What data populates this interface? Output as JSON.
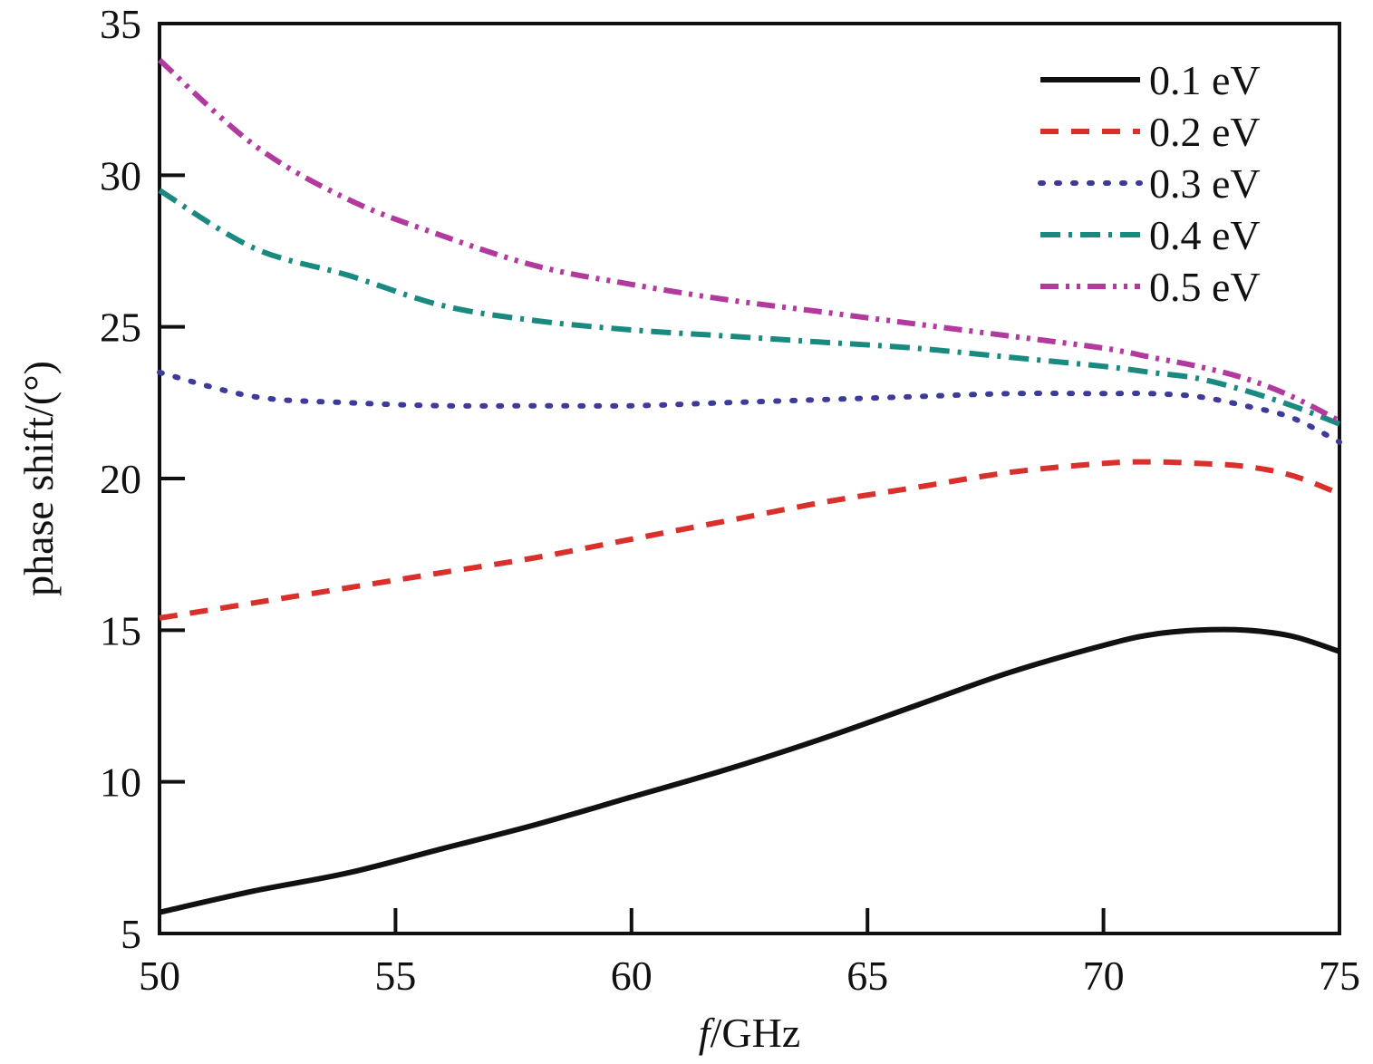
{
  "chart_data": {
    "type": "line",
    "title": "",
    "xlabel_italic": "f",
    "xlabel_rest": "/GHz",
    "ylabel": "phase shift/(°)",
    "xlim": [
      50,
      75
    ],
    "ylim": [
      5,
      35
    ],
    "xticks": [
      "50",
      "55",
      "60",
      "65",
      "70",
      "75"
    ],
    "yticks": [
      "5",
      "10",
      "15",
      "20",
      "25",
      "30",
      "35"
    ],
    "legend_position": "top-right",
    "grid": false,
    "x": [
      50,
      52,
      54,
      56,
      58,
      60,
      62,
      64,
      66,
      68,
      70,
      71,
      72,
      73,
      74,
      75
    ],
    "series": [
      {
        "name": "0.1 eV",
        "color": "#111111",
        "dash": "solid",
        "values": [
          5.7,
          6.4,
          7.0,
          7.8,
          8.6,
          9.5,
          10.4,
          11.4,
          12.5,
          13.6,
          14.5,
          14.85,
          15.0,
          15.0,
          14.8,
          14.3
        ]
      },
      {
        "name": "0.2 eV",
        "color": "#d9302c",
        "dash": "dashed",
        "values": [
          15.4,
          15.9,
          16.4,
          16.9,
          17.4,
          18.0,
          18.6,
          19.2,
          19.7,
          20.2,
          20.5,
          20.55,
          20.5,
          20.4,
          20.1,
          19.5
        ]
      },
      {
        "name": "0.3 eV",
        "color": "#3d3a99",
        "dash": "dotted",
        "values": [
          23.5,
          22.7,
          22.5,
          22.4,
          22.4,
          22.4,
          22.5,
          22.6,
          22.7,
          22.8,
          22.8,
          22.8,
          22.7,
          22.4,
          22.0,
          21.2
        ]
      },
      {
        "name": "0.4 eV",
        "color": "#1a8a80",
        "dash": "dashdot",
        "values": [
          29.5,
          27.6,
          26.7,
          25.7,
          25.2,
          24.9,
          24.7,
          24.5,
          24.3,
          24.0,
          23.7,
          23.5,
          23.3,
          22.9,
          22.4,
          21.8
        ]
      },
      {
        "name": "0.5 eV",
        "color": "#b23a9e",
        "dash": "dashdotdot",
        "values": [
          33.8,
          31.0,
          29.2,
          28.0,
          27.0,
          26.4,
          25.9,
          25.5,
          25.1,
          24.7,
          24.3,
          24.0,
          23.7,
          23.3,
          22.7,
          21.9
        ]
      }
    ]
  }
}
